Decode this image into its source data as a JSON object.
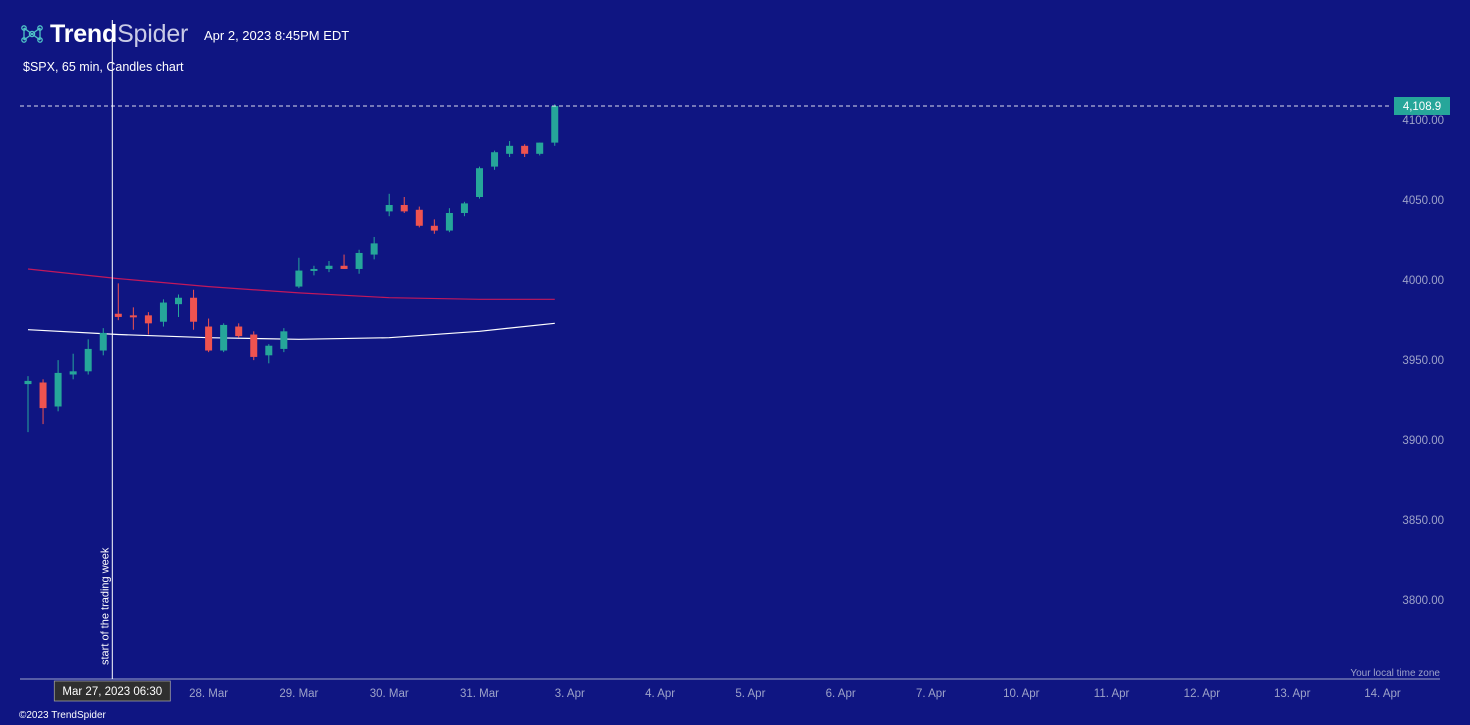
{
  "header": {
    "brand_bold": "Trend",
    "brand_light": "Spider",
    "logo_icon": "trendspider-network-icon",
    "timestamp": "Apr 2, 2023 8:45PM EDT",
    "subtitle": "$SPX, 65 min, Candles chart"
  },
  "footer": {
    "copyright": "©2023 TrendSpider"
  },
  "colors": {
    "background": "#0f1582",
    "up": "#26a69a",
    "down": "#ef5350",
    "ma_fast": "#c2185b",
    "ma_slow": "#ffffff",
    "axis_text": "#9ea3c9",
    "last_price_bg": "#26a69a"
  },
  "chart_data": {
    "type": "candlestick",
    "title": "$SPX, 65 min, Candles chart",
    "ylim": [
      3760,
      4115
    ],
    "y_ticks": [
      "4100.00",
      "4050.00",
      "4000.00",
      "3950.00",
      "3900.00",
      "3850.00",
      "3800.00"
    ],
    "y_tick_values": [
      4100,
      4050,
      4000,
      3950,
      3900,
      3850,
      3800
    ],
    "x_ticks": [
      {
        "label": "28. Mar",
        "t": 12
      },
      {
        "label": "29. Mar",
        "t": 18
      },
      {
        "label": "30. Mar",
        "t": 24
      },
      {
        "label": "31. Mar",
        "t": 30
      },
      {
        "label": "3. Apr",
        "t": 36
      },
      {
        "label": "4. Apr",
        "t": 42
      },
      {
        "label": "5. Apr",
        "t": 48
      },
      {
        "label": "6. Apr",
        "t": 54
      },
      {
        "label": "7. Apr",
        "t": 60
      },
      {
        "label": "10. Apr",
        "t": 66
      },
      {
        "label": "11. Apr",
        "t": 72
      },
      {
        "label": "12. Apr",
        "t": 78
      },
      {
        "label": "13. Apr",
        "t": 84
      },
      {
        "label": "14. Apr",
        "t": 90
      }
    ],
    "candles": [
      {
        "t": 0,
        "o": 3935,
        "h": 3940,
        "l": 3905,
        "c": 3937
      },
      {
        "t": 1,
        "o": 3936,
        "h": 3938,
        "l": 3910,
        "c": 3920
      },
      {
        "t": 2,
        "o": 3921,
        "h": 3950,
        "l": 3918,
        "c": 3942
      },
      {
        "t": 3,
        "o": 3941,
        "h": 3954,
        "l": 3938,
        "c": 3943
      },
      {
        "t": 4,
        "o": 3943,
        "h": 3963,
        "l": 3941,
        "c": 3957
      },
      {
        "t": 5,
        "o": 3956,
        "h": 3970,
        "l": 3953,
        "c": 3967
      },
      {
        "t": 6,
        "o": 3979,
        "h": 3998,
        "l": 3975,
        "c": 3977
      },
      {
        "t": 7,
        "o": 3978,
        "h": 3983,
        "l": 3969,
        "c": 3977
      },
      {
        "t": 8,
        "o": 3978,
        "h": 3980,
        "l": 3966,
        "c": 3973
      },
      {
        "t": 9,
        "o": 3974,
        "h": 3988,
        "l": 3971,
        "c": 3986
      },
      {
        "t": 10,
        "o": 3985,
        "h": 3991,
        "l": 3977,
        "c": 3989
      },
      {
        "t": 11,
        "o": 3989,
        "h": 3994,
        "l": 3969,
        "c": 3974
      },
      {
        "t": 12,
        "o": 3971,
        "h": 3976,
        "l": 3955,
        "c": 3956
      },
      {
        "t": 13,
        "o": 3956,
        "h": 3973,
        "l": 3955,
        "c": 3972
      },
      {
        "t": 14,
        "o": 3971,
        "h": 3973,
        "l": 3964,
        "c": 3965
      },
      {
        "t": 15,
        "o": 3966,
        "h": 3968,
        "l": 3950,
        "c": 3952
      },
      {
        "t": 16,
        "o": 3953,
        "h": 3960,
        "l": 3948,
        "c": 3959
      },
      {
        "t": 17,
        "o": 3957,
        "h": 3970,
        "l": 3955,
        "c": 3968
      },
      {
        "t": 18,
        "o": 3996,
        "h": 4014,
        "l": 3995,
        "c": 4006
      },
      {
        "t": 19,
        "o": 4006,
        "h": 4009,
        "l": 4003,
        "c": 4007
      },
      {
        "t": 20,
        "o": 4007,
        "h": 4012,
        "l": 4005,
        "c": 4009
      },
      {
        "t": 21,
        "o": 4009,
        "h": 4016,
        "l": 4007,
        "c": 4007
      },
      {
        "t": 22,
        "o": 4007,
        "h": 4019,
        "l": 4004,
        "c": 4017
      },
      {
        "t": 23,
        "o": 4016,
        "h": 4027,
        "l": 4013,
        "c": 4023
      },
      {
        "t": 24,
        "o": 4043,
        "h": 4054,
        "l": 4040,
        "c": 4047
      },
      {
        "t": 25,
        "o": 4047,
        "h": 4052,
        "l": 4042,
        "c": 4043
      },
      {
        "t": 26,
        "o": 4044,
        "h": 4046,
        "l": 4033,
        "c": 4034
      },
      {
        "t": 27,
        "o": 4034,
        "h": 4038,
        "l": 4029,
        "c": 4031
      },
      {
        "t": 28,
        "o": 4031,
        "h": 4045,
        "l": 4030,
        "c": 4042
      },
      {
        "t": 29,
        "o": 4042,
        "h": 4049,
        "l": 4040,
        "c": 4048
      },
      {
        "t": 30,
        "o": 4052,
        "h": 4071,
        "l": 4051,
        "c": 4070
      },
      {
        "t": 31,
        "o": 4071,
        "h": 4081,
        "l": 4069,
        "c": 4080
      },
      {
        "t": 32,
        "o": 4079,
        "h": 4087,
        "l": 4077,
        "c": 4084
      },
      {
        "t": 33,
        "o": 4084,
        "h": 4085,
        "l": 4077,
        "c": 4079
      },
      {
        "t": 34,
        "o": 4079,
        "h": 4086,
        "l": 4078,
        "c": 4086
      },
      {
        "t": 35,
        "o": 4086,
        "h": 4110,
        "l": 4084,
        "c": 4108.9
      }
    ],
    "ma_fast": [
      {
        "t": 0,
        "v": 4007
      },
      {
        "t": 6,
        "v": 4001
      },
      {
        "t": 12,
        "v": 3996
      },
      {
        "t": 18,
        "v": 3992
      },
      {
        "t": 24,
        "v": 3989
      },
      {
        "t": 30,
        "v": 3988
      },
      {
        "t": 35,
        "v": 3988
      }
    ],
    "ma_slow": [
      {
        "t": 0,
        "v": 3969
      },
      {
        "t": 6,
        "v": 3966
      },
      {
        "t": 12,
        "v": 3964
      },
      {
        "t": 18,
        "v": 3963
      },
      {
        "t": 24,
        "v": 3964
      },
      {
        "t": 30,
        "v": 3968
      },
      {
        "t": 35,
        "v": 3973
      }
    ],
    "last_price": {
      "value": 4108.9,
      "label": "4,108.9"
    },
    "crosshair": {
      "t": 6,
      "date_label": "Mar 27, 2023 06:30"
    },
    "annotation": "start of the trading week",
    "timezone_note": "Your local time zone",
    "grid": false
  }
}
